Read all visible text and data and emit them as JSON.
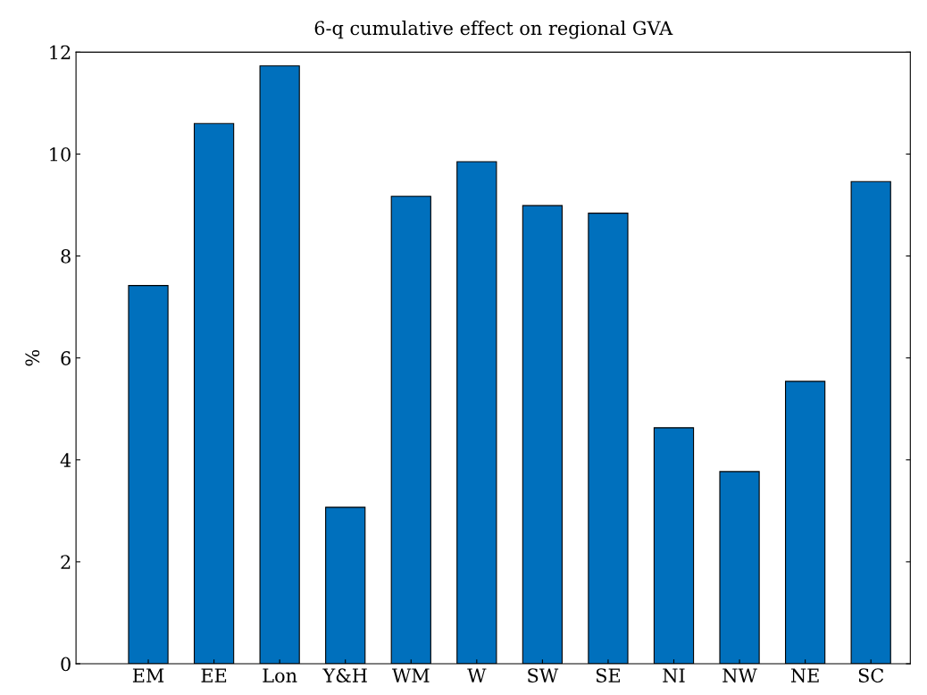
{
  "chart_data": {
    "type": "bar",
    "title": "6-q cumulative effect on regional GVA",
    "ylabel": "%",
    "categories": [
      "EM",
      "EE",
      "Lon",
      "Y&H",
      "WM",
      "W",
      "SW",
      "SE",
      "NI",
      "NW",
      "NE",
      "SC"
    ],
    "values": [
      7.42,
      10.6,
      11.73,
      3.07,
      9.17,
      9.85,
      8.99,
      8.84,
      4.63,
      3.77,
      5.54,
      9.46
    ],
    "color": "#0070bd",
    "ylim": [
      0,
      12
    ],
    "yticks": [
      0,
      2,
      4,
      6,
      8,
      10,
      12
    ],
    "grid": false
  }
}
